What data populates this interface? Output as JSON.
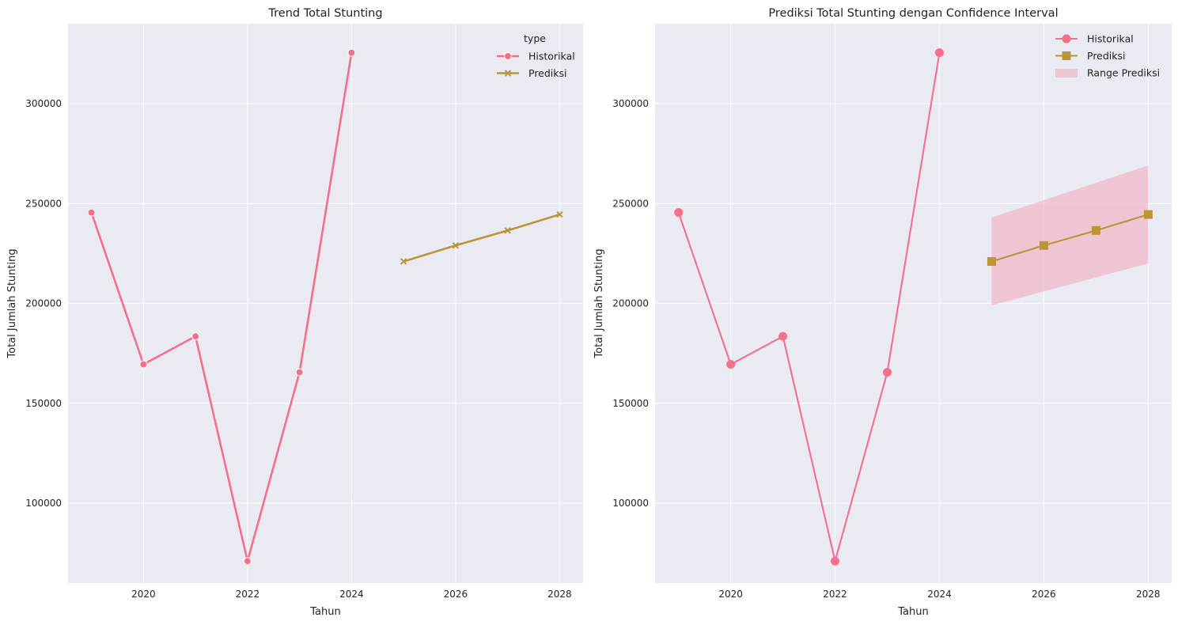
{
  "chart_data": [
    {
      "type": "line",
      "title": "Trend Total Stunting",
      "xlabel": "Tahun",
      "ylabel": "Total Jumlah Stunting",
      "xlim": [
        2018.55,
        2028.45
      ],
      "ylim": [
        60000,
        340000
      ],
      "xticks": [
        2020,
        2022,
        2024,
        2026,
        2028
      ],
      "yticks": [
        100000,
        150000,
        200000,
        250000,
        300000
      ],
      "grid": true,
      "legend": {
        "title": "type",
        "position": "top-right"
      },
      "series": [
        {
          "name": "Historikal",
          "color": "#f2708a",
          "marker": "circle",
          "x": [
            2019,
            2020,
            2021,
            2022,
            2023,
            2024
          ],
          "y": [
            245500,
            169500,
            183500,
            71000,
            165500,
            325500
          ]
        },
        {
          "name": "Prediksi",
          "color": "#bb9537",
          "marker": "x",
          "x": [
            2025,
            2026,
            2027,
            2028
          ],
          "y": [
            221000,
            229000,
            236500,
            244500
          ]
        }
      ]
    },
    {
      "type": "line",
      "title": "Prediksi Total Stunting dengan Confidence Interval",
      "xlabel": "Tahun",
      "ylabel": "Total Jumlah Stunting",
      "xlim": [
        2018.55,
        2028.45
      ],
      "ylim": [
        60000,
        340000
      ],
      "xticks": [
        2020,
        2022,
        2024,
        2026,
        2028
      ],
      "yticks": [
        100000,
        150000,
        200000,
        250000,
        300000
      ],
      "grid": true,
      "legend": {
        "position": "top-right"
      },
      "series": [
        {
          "name": "Historikal",
          "color": "#f2708a",
          "marker": "circle",
          "x": [
            2019,
            2020,
            2021,
            2022,
            2023,
            2024
          ],
          "y": [
            245500,
            169500,
            183500,
            71000,
            165500,
            325500
          ]
        },
        {
          "name": "Prediksi",
          "color": "#bb9537",
          "marker": "square",
          "x": [
            2025,
            2026,
            2027,
            2028
          ],
          "y": [
            221000,
            229000,
            236500,
            244500
          ]
        }
      ],
      "band": {
        "name": "Range Prediksi",
        "color": "#f2a5bb",
        "x": [
          2025,
          2028
        ],
        "lower": [
          199000,
          220000
        ],
        "upper": [
          243000,
          269000
        ]
      }
    }
  ]
}
